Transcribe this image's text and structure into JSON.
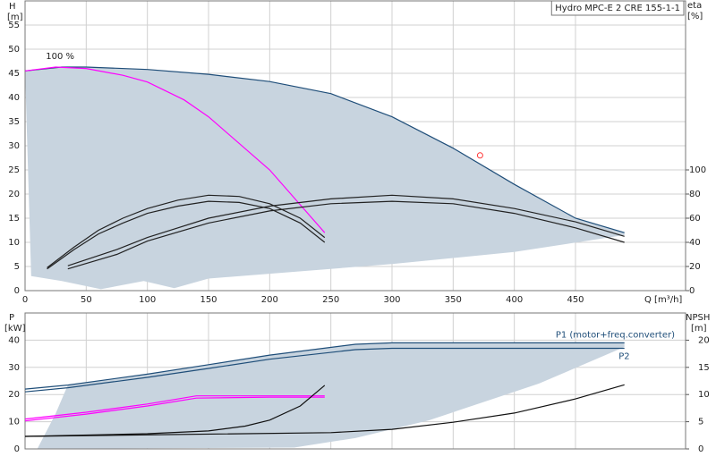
{
  "chart_data": [
    {
      "type": "line",
      "title": "Hydro MPC-E 2 CRE 155-1-1",
      "annotation": "100 %",
      "ylabel": "H",
      "yunit": "[m]",
      "y2label": "eta",
      "y2unit": "[%]",
      "xlabel": "Q [m³/h]",
      "xlim": [
        0,
        540
      ],
      "xticks": [
        0,
        50,
        100,
        150,
        200,
        250,
        300,
        350,
        400,
        450
      ],
      "ylim": [
        0,
        60
      ],
      "yticks": [
        0,
        5,
        10,
        15,
        20,
        25,
        30,
        35,
        40,
        45,
        50,
        55
      ],
      "y2lim": [
        0,
        240
      ],
      "y2ticks": [
        0,
        20,
        40,
        60,
        80,
        100
      ],
      "grid": true,
      "area": {
        "color": "#c8d4df",
        "x": [
          0,
          30,
          50,
          100,
          150,
          200,
          250,
          300,
          350,
          400,
          450,
          490,
          490,
          400,
          300,
          200,
          150,
          122,
          97,
          62,
          30,
          5
        ],
        "y": [
          45.5,
          46.3,
          46.3,
          45.8,
          44.8,
          43.3,
          40.8,
          36,
          29.5,
          22,
          15,
          12,
          11.5,
          8,
          5.5,
          3.5,
          2.5,
          0.5,
          2,
          0.3,
          2,
          3
        ]
      },
      "series": [
        {
          "color": "#1f4e79",
          "x": [
            0,
            30,
            50,
            100,
            150,
            200,
            250,
            300,
            350,
            400,
            450,
            490
          ],
          "values": [
            45.5,
            46.3,
            46.3,
            45.8,
            44.8,
            43.3,
            40.8,
            36,
            29.5,
            22,
            15,
            12
          ]
        },
        {
          "color": "#ff00ff",
          "x": [
            0,
            25,
            50,
            80,
            100,
            130,
            150,
            200,
            245
          ],
          "values": [
            45.5,
            46.3,
            46,
            44.6,
            43.2,
            39.5,
            36,
            25,
            12
          ]
        },
        {
          "color": "#222222",
          "axis": "y2",
          "x": [
            18,
            40,
            60,
            80,
            100,
            125,
            150,
            175,
            200,
            225,
            245
          ],
          "values": [
            19,
            36,
            50,
            60,
            68,
            75,
            79,
            78,
            72,
            60,
            44
          ]
        },
        {
          "color": "#222222",
          "axis": "y2",
          "x": [
            18,
            40,
            60,
            80,
            100,
            125,
            150,
            175,
            200,
            225,
            245
          ],
          "values": [
            18,
            34,
            47,
            56,
            64,
            70,
            74,
            73,
            68,
            56,
            40
          ]
        },
        {
          "color": "#222222",
          "axis": "y2",
          "x": [
            35,
            75,
            100,
            150,
            200,
            250,
            300,
            350,
            400,
            450,
            490
          ],
          "values": [
            20.6,
            34,
            44,
            60,
            70,
            76,
            79,
            76,
            68,
            57,
            45
          ]
        },
        {
          "color": "#222222",
          "axis": "y2",
          "x": [
            35,
            75,
            100,
            150,
            200,
            250,
            300,
            350,
            400,
            450,
            490
          ],
          "values": [
            18,
            30,
            41,
            56,
            66,
            72,
            74,
            72,
            64,
            52,
            40
          ]
        }
      ],
      "marker": {
        "color": "#ff3333",
        "x": 372,
        "y": 28
      }
    },
    {
      "type": "line",
      "ylabel": "P",
      "yunit": "[kW]",
      "y2label": "NPSH",
      "y2unit": "[m]",
      "xlim": [
        0,
        540
      ],
      "ylim": [
        0,
        50
      ],
      "yticks": [
        0,
        10,
        20,
        30,
        40
      ],
      "y2lim": [
        0,
        25
      ],
      "y2ticks": [
        0,
        5,
        10,
        15,
        20
      ],
      "grid": true,
      "area": {
        "color": "#c8d4df",
        "x": [
          35,
          100,
          150,
          200,
          270,
          300,
          490,
          490,
          420,
          330,
          270,
          220,
          10,
          25
        ],
        "y": [
          23.5,
          27.5,
          31,
          34.5,
          38.5,
          39,
          39,
          37.5,
          24,
          10.5,
          4,
          0.5,
          0,
          13
        ]
      },
      "series": [
        {
          "name": "P1 (motor+freq.converter)",
          "color": "#1f4e79",
          "x": [
            0,
            35,
            100,
            150,
            200,
            270,
            300,
            490
          ],
          "values": [
            22,
            23.5,
            27.5,
            31,
            34.5,
            38.5,
            39,
            39
          ]
        },
        {
          "name": "P2",
          "color": "#1f4e79",
          "x": [
            0,
            35,
            100,
            150,
            200,
            270,
            300,
            490
          ],
          "values": [
            21,
            22.5,
            26.3,
            29.6,
            33,
            36.5,
            37,
            37
          ]
        },
        {
          "color": "#ff00ff",
          "x": [
            0,
            50,
            100,
            140,
            200,
            245
          ],
          "values": [
            11,
            13.5,
            16.5,
            19.5,
            19.5,
            19.5
          ]
        },
        {
          "color": "#ff00ff",
          "x": [
            0,
            50,
            100,
            140,
            200,
            245
          ],
          "values": [
            10.3,
            12.8,
            15.8,
            18.7,
            19,
            19
          ]
        },
        {
          "color": "#111111",
          "axis": "y2",
          "x": [
            0,
            100,
            150,
            180,
            200,
            225,
            245
          ],
          "values": [
            2.3,
            2.8,
            3.3,
            4.2,
            5.3,
            7.9,
            11.7
          ]
        },
        {
          "color": "#111111",
          "axis": "y2",
          "x": [
            0,
            250,
            300,
            350,
            400,
            450,
            490
          ],
          "values": [
            2.3,
            3,
            3.6,
            4.9,
            6.6,
            9.2,
            11.8
          ]
        }
      ]
    }
  ]
}
